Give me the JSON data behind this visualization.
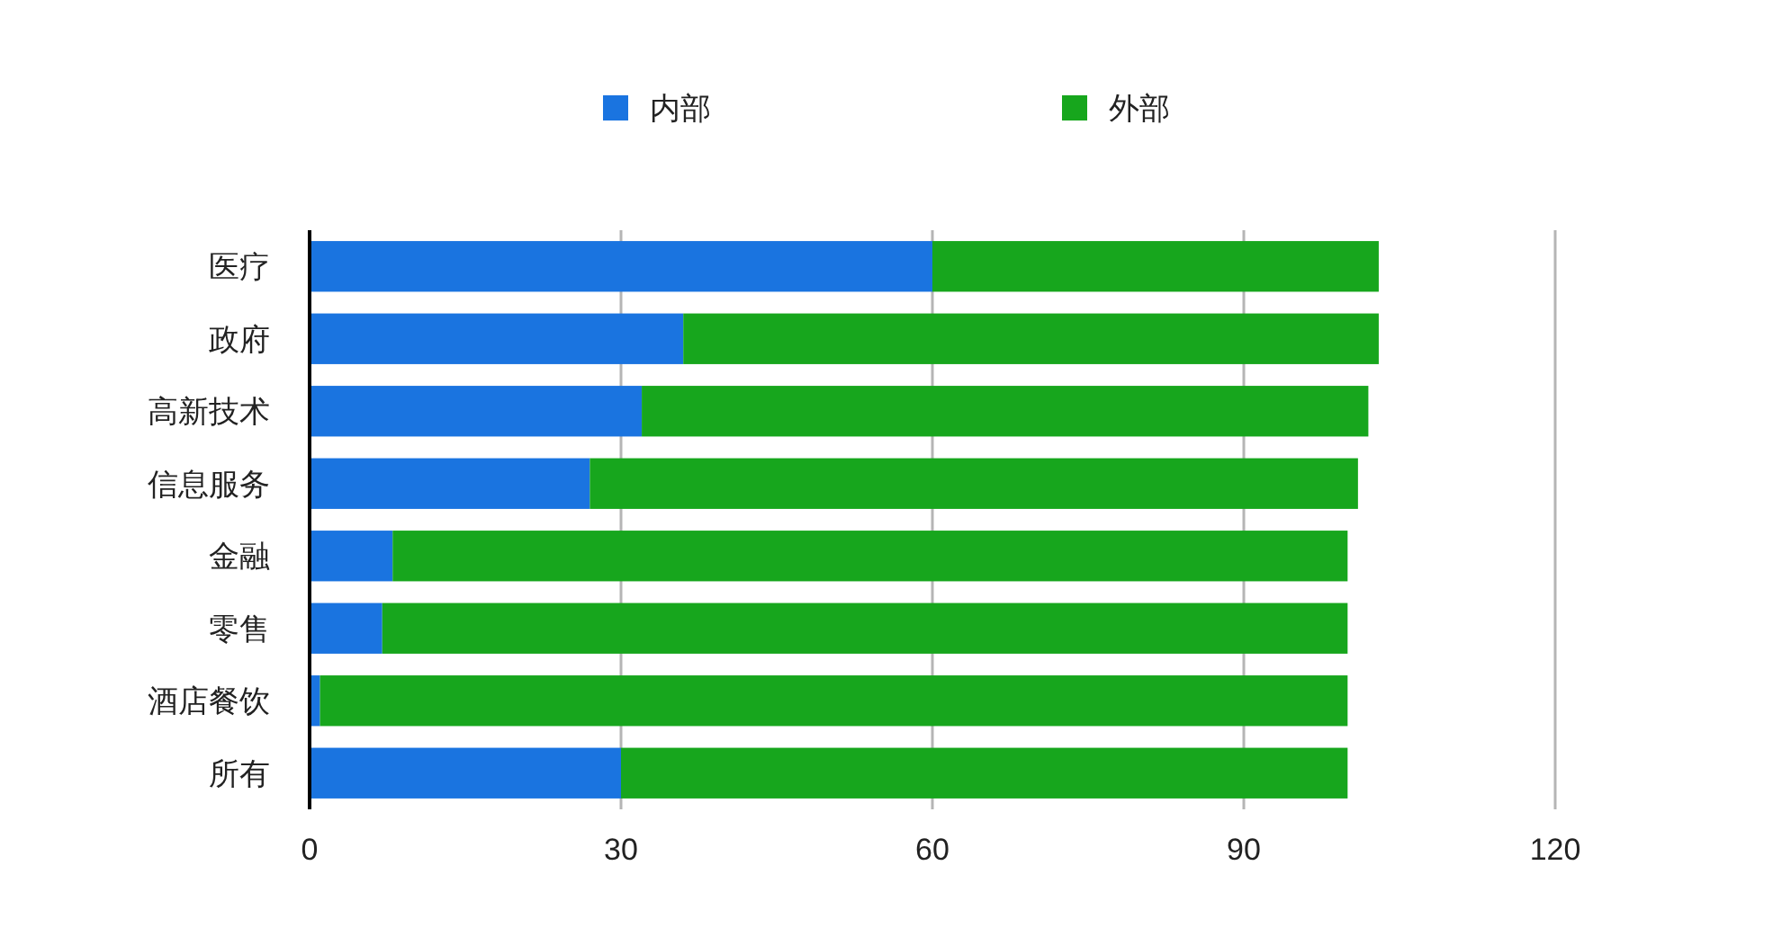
{
  "chart_data": {
    "type": "bar",
    "orientation": "horizontal",
    "stacked": true,
    "categories": [
      "医疗",
      "政府",
      "高新技术",
      "信息服务",
      "金融",
      "零售",
      "酒店餐饮",
      "所有"
    ],
    "series": [
      {
        "name": "内部",
        "color": "#1a74e0",
        "values": [
          60,
          36,
          32,
          27,
          8,
          7,
          1,
          30
        ]
      },
      {
        "name": "外部",
        "color": "#17a61d",
        "values": [
          43,
          67,
          70,
          74,
          92,
          93,
          99,
          70
        ]
      }
    ],
    "xlim": [
      0,
      120
    ],
    "xticks": [
      0,
      30,
      60,
      90,
      120
    ],
    "grid": "x",
    "legend": "top"
  }
}
